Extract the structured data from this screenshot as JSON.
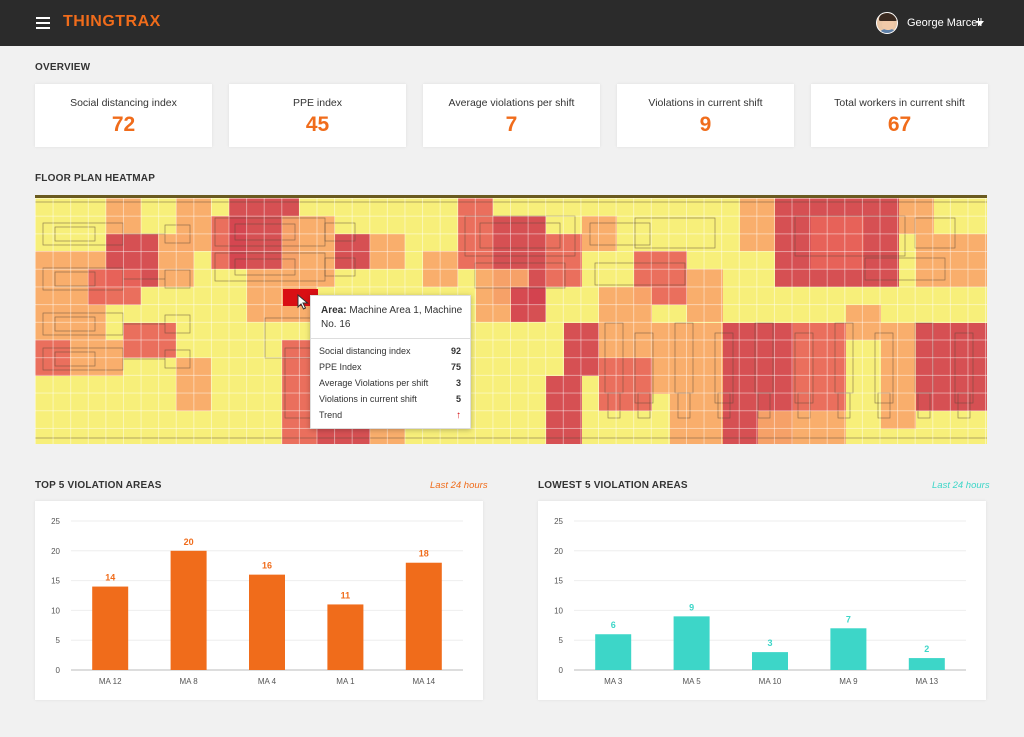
{
  "header": {
    "logo": "THINGTRAX",
    "user_name": "George Marcell"
  },
  "overview": {
    "title": "OVERVIEW",
    "kpis": [
      {
        "label": "Social distancing index",
        "value": "72"
      },
      {
        "label": "PPE index",
        "value": "45"
      },
      {
        "label": "Average violations per shift",
        "value": "7"
      },
      {
        "label": "Violations in current shift",
        "value": "9"
      },
      {
        "label": "Total workers in current shift",
        "value": "67"
      }
    ]
  },
  "heatmap": {
    "title": "FLOOR PLAN HEATMAP",
    "colors": {
      "low": "#f7ef7a",
      "medium": "#f9a86a",
      "high": "#e8645a",
      "very_high": "#d2424f",
      "selected": "#d90f14"
    },
    "tooltip": {
      "area_label": "Area:",
      "area_value": "Machine Area 1, Machine No. 16",
      "rows": [
        {
          "label": "Social distancing index",
          "value": "92"
        },
        {
          "label": "PPE Index",
          "value": "75"
        },
        {
          "label": "Average Violations per shift",
          "value": "3"
        },
        {
          "label": "Violations in current shift",
          "value": "5"
        }
      ],
      "trend_label": "Trend",
      "trend_icon": "arrow-up-icon"
    }
  },
  "top5": {
    "title": "TOP 5 VIOLATION AREAS",
    "period": "Last 24 hours",
    "accent": "#f06c1b"
  },
  "lowest5": {
    "title": "LOWEST 5 VIOLATION AREAS",
    "period": "Last 24 hours",
    "accent": "#3dd6c8"
  },
  "chart_data": [
    {
      "type": "bar",
      "title": "TOP 5 VIOLATION AREAS",
      "categories": [
        "MA 12",
        "MA 8",
        "MA 4",
        "MA 1",
        "MA 14"
      ],
      "values": [
        14,
        20,
        16,
        11,
        18
      ],
      "ylim": [
        0,
        25
      ],
      "yticks": [
        0,
        5,
        10,
        15,
        20,
        25
      ],
      "grid": true,
      "color": "#f06c1b"
    },
    {
      "type": "bar",
      "title": "LOWEST 5 VIOLATION AREAS",
      "categories": [
        "MA 3",
        "MA 5",
        "MA 10",
        "MA 9",
        "MA 13"
      ],
      "values": [
        6,
        9,
        3,
        7,
        2
      ],
      "ylim": [
        0,
        25
      ],
      "yticks": [
        0,
        5,
        10,
        15,
        20,
        25
      ],
      "grid": true,
      "color": "#3dd6c8"
    }
  ]
}
